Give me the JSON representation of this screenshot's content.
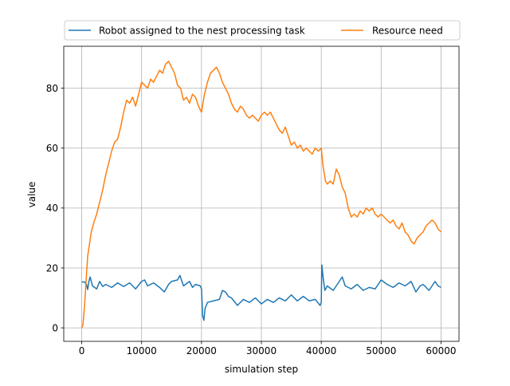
{
  "chart_data": {
    "type": "line",
    "title": "",
    "xlabel": "simulation step",
    "ylabel": "value",
    "xlim": [
      -3000,
      63000
    ],
    "ylim": [
      -4.5,
      94
    ],
    "xticks": [
      0,
      10000,
      20000,
      30000,
      40000,
      50000,
      60000
    ],
    "xtick_labels": [
      "0",
      "10000",
      "20000",
      "30000",
      "40000",
      "50000",
      "60000"
    ],
    "yticks": [
      0,
      20,
      40,
      60,
      80
    ],
    "ytick_labels": [
      "0",
      "20",
      "40",
      "60",
      "80"
    ],
    "grid": true,
    "legend": {
      "placement": "top, above plot",
      "columns": 2
    },
    "series": [
      {
        "name": "Robot assigned to the nest processing task",
        "color": "#1f77b4",
        "points": [
          [
            0,
            15.3
          ],
          [
            500,
            15.3
          ],
          [
            800,
            14.5
          ],
          [
            1000,
            12.8
          ],
          [
            1200,
            15.5
          ],
          [
            1400,
            17
          ],
          [
            1800,
            14
          ],
          [
            2500,
            13
          ],
          [
            3000,
            15.5
          ],
          [
            3500,
            13.8
          ],
          [
            4000,
            14.5
          ],
          [
            5000,
            13.5
          ],
          [
            6000,
            15
          ],
          [
            7000,
            13.8
          ],
          [
            8000,
            15
          ],
          [
            9000,
            13
          ],
          [
            10000,
            15.5
          ],
          [
            10500,
            16
          ],
          [
            11000,
            14
          ],
          [
            12000,
            15
          ],
          [
            13000,
            13.5
          ],
          [
            13800,
            12
          ],
          [
            14500,
            14.5
          ],
          [
            15000,
            15.5
          ],
          [
            16000,
            16
          ],
          [
            16400,
            17.5
          ],
          [
            17000,
            14
          ],
          [
            18000,
            15.5
          ],
          [
            18500,
            13.5
          ],
          [
            19000,
            14.5
          ],
          [
            19800,
            14
          ],
          [
            20000,
            13
          ],
          [
            20200,
            4
          ],
          [
            20400,
            2.5
          ],
          [
            20600,
            6.5
          ],
          [
            21000,
            8.5
          ],
          [
            22000,
            9
          ],
          [
            23000,
            9.5
          ],
          [
            23500,
            12.5
          ],
          [
            24000,
            12
          ],
          [
            24500,
            10.5
          ],
          [
            25000,
            10
          ],
          [
            26000,
            7.5
          ],
          [
            27000,
            9.5
          ],
          [
            28000,
            8.5
          ],
          [
            29000,
            10
          ],
          [
            30000,
            8
          ],
          [
            31000,
            9.5
          ],
          [
            32000,
            8.5
          ],
          [
            33000,
            10
          ],
          [
            34000,
            9
          ],
          [
            35000,
            11
          ],
          [
            36000,
            9
          ],
          [
            37000,
            10.5
          ],
          [
            38000,
            9
          ],
          [
            39000,
            9.5
          ],
          [
            39800,
            7.5
          ],
          [
            40000,
            8.5
          ],
          [
            40100,
            21
          ],
          [
            40300,
            17
          ],
          [
            40600,
            12.5
          ],
          [
            41000,
            14
          ],
          [
            42000,
            12.5
          ],
          [
            43000,
            15.5
          ],
          [
            43500,
            17
          ],
          [
            44000,
            14
          ],
          [
            45000,
            13
          ],
          [
            46000,
            14.5
          ],
          [
            47000,
            12.5
          ],
          [
            48000,
            13.5
          ],
          [
            49000,
            13
          ],
          [
            50000,
            16
          ],
          [
            51000,
            14.5
          ],
          [
            52000,
            13.5
          ],
          [
            53000,
            15
          ],
          [
            54000,
            14
          ],
          [
            55000,
            15.5
          ],
          [
            55800,
            12
          ],
          [
            56500,
            14
          ],
          [
            57000,
            14.5
          ],
          [
            58000,
            12.5
          ],
          [
            59000,
            15.5
          ],
          [
            59500,
            14
          ],
          [
            60000,
            13.5
          ]
        ]
      },
      {
        "name": "Resource need",
        "color": "#ff7f0e",
        "points": [
          [
            0,
            0
          ],
          [
            200,
            1
          ],
          [
            500,
            8
          ],
          [
            800,
            18
          ],
          [
            1000,
            24
          ],
          [
            1300,
            28
          ],
          [
            1600,
            32
          ],
          [
            2000,
            35
          ],
          [
            2500,
            38
          ],
          [
            3000,
            42
          ],
          [
            3500,
            46
          ],
          [
            4000,
            51
          ],
          [
            4500,
            55
          ],
          [
            5000,
            59
          ],
          [
            5500,
            62
          ],
          [
            6000,
            63
          ],
          [
            6500,
            67
          ],
          [
            7000,
            72
          ],
          [
            7500,
            76
          ],
          [
            8000,
            75
          ],
          [
            8500,
            77
          ],
          [
            9000,
            74
          ],
          [
            9500,
            78
          ],
          [
            10000,
            82
          ],
          [
            10500,
            81
          ],
          [
            11000,
            80
          ],
          [
            11500,
            83
          ],
          [
            12000,
            82
          ],
          [
            12500,
            84
          ],
          [
            13000,
            86
          ],
          [
            13500,
            85
          ],
          [
            14000,
            88
          ],
          [
            14500,
            89
          ],
          [
            15000,
            87
          ],
          [
            15500,
            85
          ],
          [
            16000,
            81
          ],
          [
            16500,
            80
          ],
          [
            17000,
            76
          ],
          [
            17500,
            77
          ],
          [
            18000,
            75
          ],
          [
            18500,
            78
          ],
          [
            19000,
            77
          ],
          [
            19500,
            74
          ],
          [
            20000,
            72
          ],
          [
            20500,
            78
          ],
          [
            21000,
            82
          ],
          [
            21500,
            85
          ],
          [
            22000,
            86
          ],
          [
            22500,
            87
          ],
          [
            23000,
            85
          ],
          [
            23500,
            82
          ],
          [
            24000,
            80
          ],
          [
            24500,
            78
          ],
          [
            25000,
            75
          ],
          [
            25500,
            73
          ],
          [
            26000,
            72
          ],
          [
            26500,
            74
          ],
          [
            27000,
            73
          ],
          [
            27500,
            71
          ],
          [
            28000,
            70
          ],
          [
            28500,
            71
          ],
          [
            29000,
            70
          ],
          [
            29500,
            69
          ],
          [
            30000,
            71
          ],
          [
            30500,
            72
          ],
          [
            31000,
            71
          ],
          [
            31500,
            72
          ],
          [
            32000,
            70
          ],
          [
            32500,
            68
          ],
          [
            33000,
            66
          ],
          [
            33500,
            65
          ],
          [
            34000,
            67
          ],
          [
            34500,
            64
          ],
          [
            35000,
            61
          ],
          [
            35500,
            62
          ],
          [
            36000,
            60
          ],
          [
            36500,
            61
          ],
          [
            37000,
            59
          ],
          [
            37500,
            60
          ],
          [
            38000,
            59
          ],
          [
            38500,
            58
          ],
          [
            39000,
            60
          ],
          [
            39500,
            59
          ],
          [
            40000,
            60
          ],
          [
            40300,
            54
          ],
          [
            40700,
            49
          ],
          [
            41000,
            48
          ],
          [
            41500,
            49
          ],
          [
            42000,
            48
          ],
          [
            42500,
            53
          ],
          [
            43000,
            51
          ],
          [
            43500,
            47
          ],
          [
            44000,
            45
          ],
          [
            44500,
            40
          ],
          [
            45000,
            37
          ],
          [
            45500,
            38
          ],
          [
            46000,
            37
          ],
          [
            46500,
            39
          ],
          [
            47000,
            38
          ],
          [
            47500,
            40
          ],
          [
            48000,
            39
          ],
          [
            48500,
            40
          ],
          [
            49000,
            38
          ],
          [
            49500,
            37
          ],
          [
            50000,
            38
          ],
          [
            50500,
            37
          ],
          [
            51000,
            36
          ],
          [
            51500,
            35
          ],
          [
            52000,
            36
          ],
          [
            52500,
            34
          ],
          [
            53000,
            33
          ],
          [
            53500,
            35
          ],
          [
            54000,
            32
          ],
          [
            54500,
            31
          ],
          [
            55000,
            29
          ],
          [
            55500,
            28
          ],
          [
            56000,
            30
          ],
          [
            56500,
            31
          ],
          [
            57000,
            32
          ],
          [
            57500,
            34
          ],
          [
            58000,
            35
          ],
          [
            58500,
            36
          ],
          [
            59000,
            35
          ],
          [
            59500,
            33
          ],
          [
            60000,
            32
          ]
        ]
      }
    ]
  }
}
